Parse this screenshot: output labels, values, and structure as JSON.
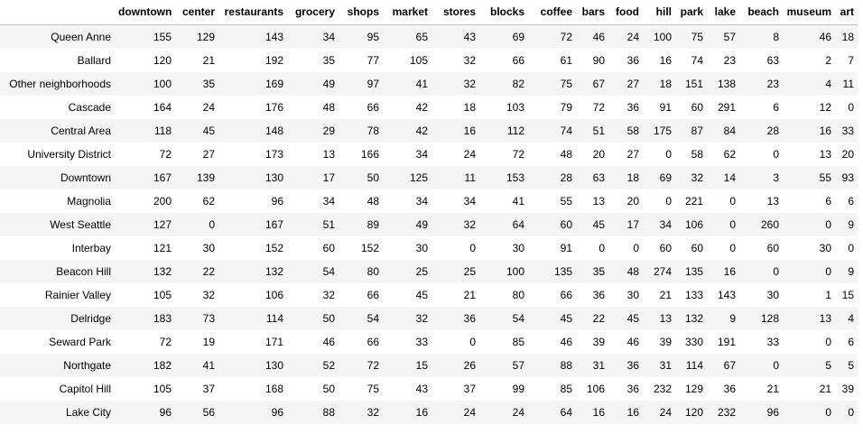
{
  "table": {
    "columns": [
      "downtown",
      "center",
      "restaurants",
      "grocery",
      "shops",
      "market",
      "stores",
      "blocks",
      "coffee",
      "bars",
      "food",
      "hill",
      "park",
      "lake",
      "beach",
      "museum",
      "art"
    ],
    "rows": [
      {
        "label": "Queen Anne",
        "values": [
          155,
          129,
          143,
          34,
          95,
          65,
          43,
          69,
          72,
          46,
          24,
          100,
          75,
          57,
          8,
          46,
          18
        ]
      },
      {
        "label": "Ballard",
        "values": [
          120,
          21,
          192,
          35,
          77,
          105,
          32,
          66,
          61,
          90,
          36,
          16,
          74,
          23,
          63,
          2,
          7
        ]
      },
      {
        "label": "Other neighborhoods",
        "values": [
          100,
          35,
          169,
          49,
          97,
          41,
          32,
          82,
          75,
          67,
          27,
          18,
          151,
          138,
          23,
          4,
          11
        ]
      },
      {
        "label": "Cascade",
        "values": [
          164,
          24,
          176,
          48,
          66,
          42,
          18,
          103,
          79,
          72,
          36,
          91,
          60,
          291,
          6,
          12,
          0
        ]
      },
      {
        "label": "Central Area",
        "values": [
          118,
          45,
          148,
          29,
          78,
          42,
          16,
          112,
          74,
          51,
          58,
          175,
          87,
          84,
          28,
          16,
          33
        ]
      },
      {
        "label": "University District",
        "values": [
          72,
          27,
          173,
          13,
          166,
          34,
          24,
          72,
          48,
          20,
          27,
          0,
          58,
          62,
          0,
          13,
          20
        ]
      },
      {
        "label": "Downtown",
        "values": [
          167,
          139,
          130,
          17,
          50,
          125,
          11,
          153,
          28,
          63,
          18,
          69,
          32,
          14,
          3,
          55,
          93
        ]
      },
      {
        "label": "Magnolia",
        "values": [
          200,
          62,
          96,
          34,
          48,
          34,
          34,
          41,
          55,
          13,
          20,
          0,
          221,
          0,
          13,
          6,
          6
        ]
      },
      {
        "label": "West Seattle",
        "values": [
          127,
          0,
          167,
          51,
          89,
          49,
          32,
          64,
          60,
          45,
          17,
          34,
          106,
          0,
          260,
          0,
          9
        ]
      },
      {
        "label": "Interbay",
        "values": [
          121,
          30,
          152,
          60,
          152,
          30,
          0,
          30,
          91,
          0,
          0,
          60,
          60,
          0,
          60,
          30,
          0
        ]
      },
      {
        "label": "Beacon Hill",
        "values": [
          132,
          22,
          132,
          54,
          80,
          25,
          25,
          100,
          135,
          35,
          48,
          274,
          135,
          16,
          0,
          0,
          9
        ]
      },
      {
        "label": "Rainier Valley",
        "values": [
          105,
          32,
          106,
          32,
          66,
          45,
          21,
          80,
          66,
          36,
          30,
          21,
          133,
          143,
          30,
          1,
          15
        ]
      },
      {
        "label": "Delridge",
        "values": [
          183,
          73,
          114,
          50,
          54,
          32,
          36,
          54,
          45,
          22,
          45,
          13,
          132,
          9,
          128,
          13,
          4
        ]
      },
      {
        "label": "Seward Park",
        "values": [
          72,
          19,
          171,
          46,
          66,
          33,
          0,
          85,
          46,
          39,
          46,
          39,
          330,
          191,
          33,
          0,
          6
        ]
      },
      {
        "label": "Northgate",
        "values": [
          182,
          41,
          130,
          52,
          72,
          15,
          26,
          57,
          88,
          31,
          36,
          31,
          114,
          67,
          0,
          5,
          5
        ]
      },
      {
        "label": "Capitol Hill",
        "values": [
          105,
          37,
          168,
          50,
          75,
          43,
          37,
          99,
          85,
          106,
          36,
          232,
          129,
          36,
          21,
          21,
          39
        ]
      },
      {
        "label": "Lake City",
        "values": [
          96,
          56,
          96,
          88,
          32,
          16,
          24,
          24,
          64,
          16,
          16,
          24,
          120,
          232,
          96,
          0,
          0
        ]
      }
    ]
  }
}
